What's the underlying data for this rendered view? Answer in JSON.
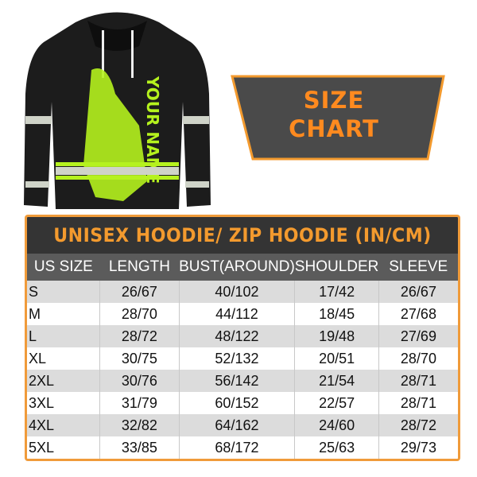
{
  "banner": {
    "line1": "SIZE",
    "line2": "CHART"
  },
  "hoodie": {
    "print_text": "YOUR NAME"
  },
  "colors": {
    "accent": "#f39a2e",
    "title_bg": "#343434",
    "header_bg": "#5b5b5b",
    "row_alt": "#dcdcdc",
    "hoodie_green": "#b5f21e"
  },
  "table": {
    "title": "UNISEX HOODIE/ ZIP HOODIE (IN/CM)",
    "headers": [
      "US SIZE",
      "LENGTH",
      "BUST(AROUND)",
      "SHOULDER",
      "SLEEVE"
    ],
    "rows": [
      [
        "S",
        "26/67",
        "40/102",
        "17/42",
        "26/67"
      ],
      [
        "M",
        "28/70",
        "44/112",
        "18/45",
        "27/68"
      ],
      [
        "L",
        "28/72",
        "48/122",
        "19/48",
        "27/69"
      ],
      [
        "XL",
        "30/75",
        "52/132",
        "20/51",
        "28/70"
      ],
      [
        "2XL",
        "30/76",
        "56/142",
        "21/54",
        "28/71"
      ],
      [
        "3XL",
        "31/79",
        "60/152",
        "22/57",
        "28/71"
      ],
      [
        "4XL",
        "32/82",
        "64/162",
        "24/60",
        "28/72"
      ],
      [
        "5XL",
        "33/85",
        "68/172",
        "25/63",
        "29/73"
      ]
    ]
  }
}
